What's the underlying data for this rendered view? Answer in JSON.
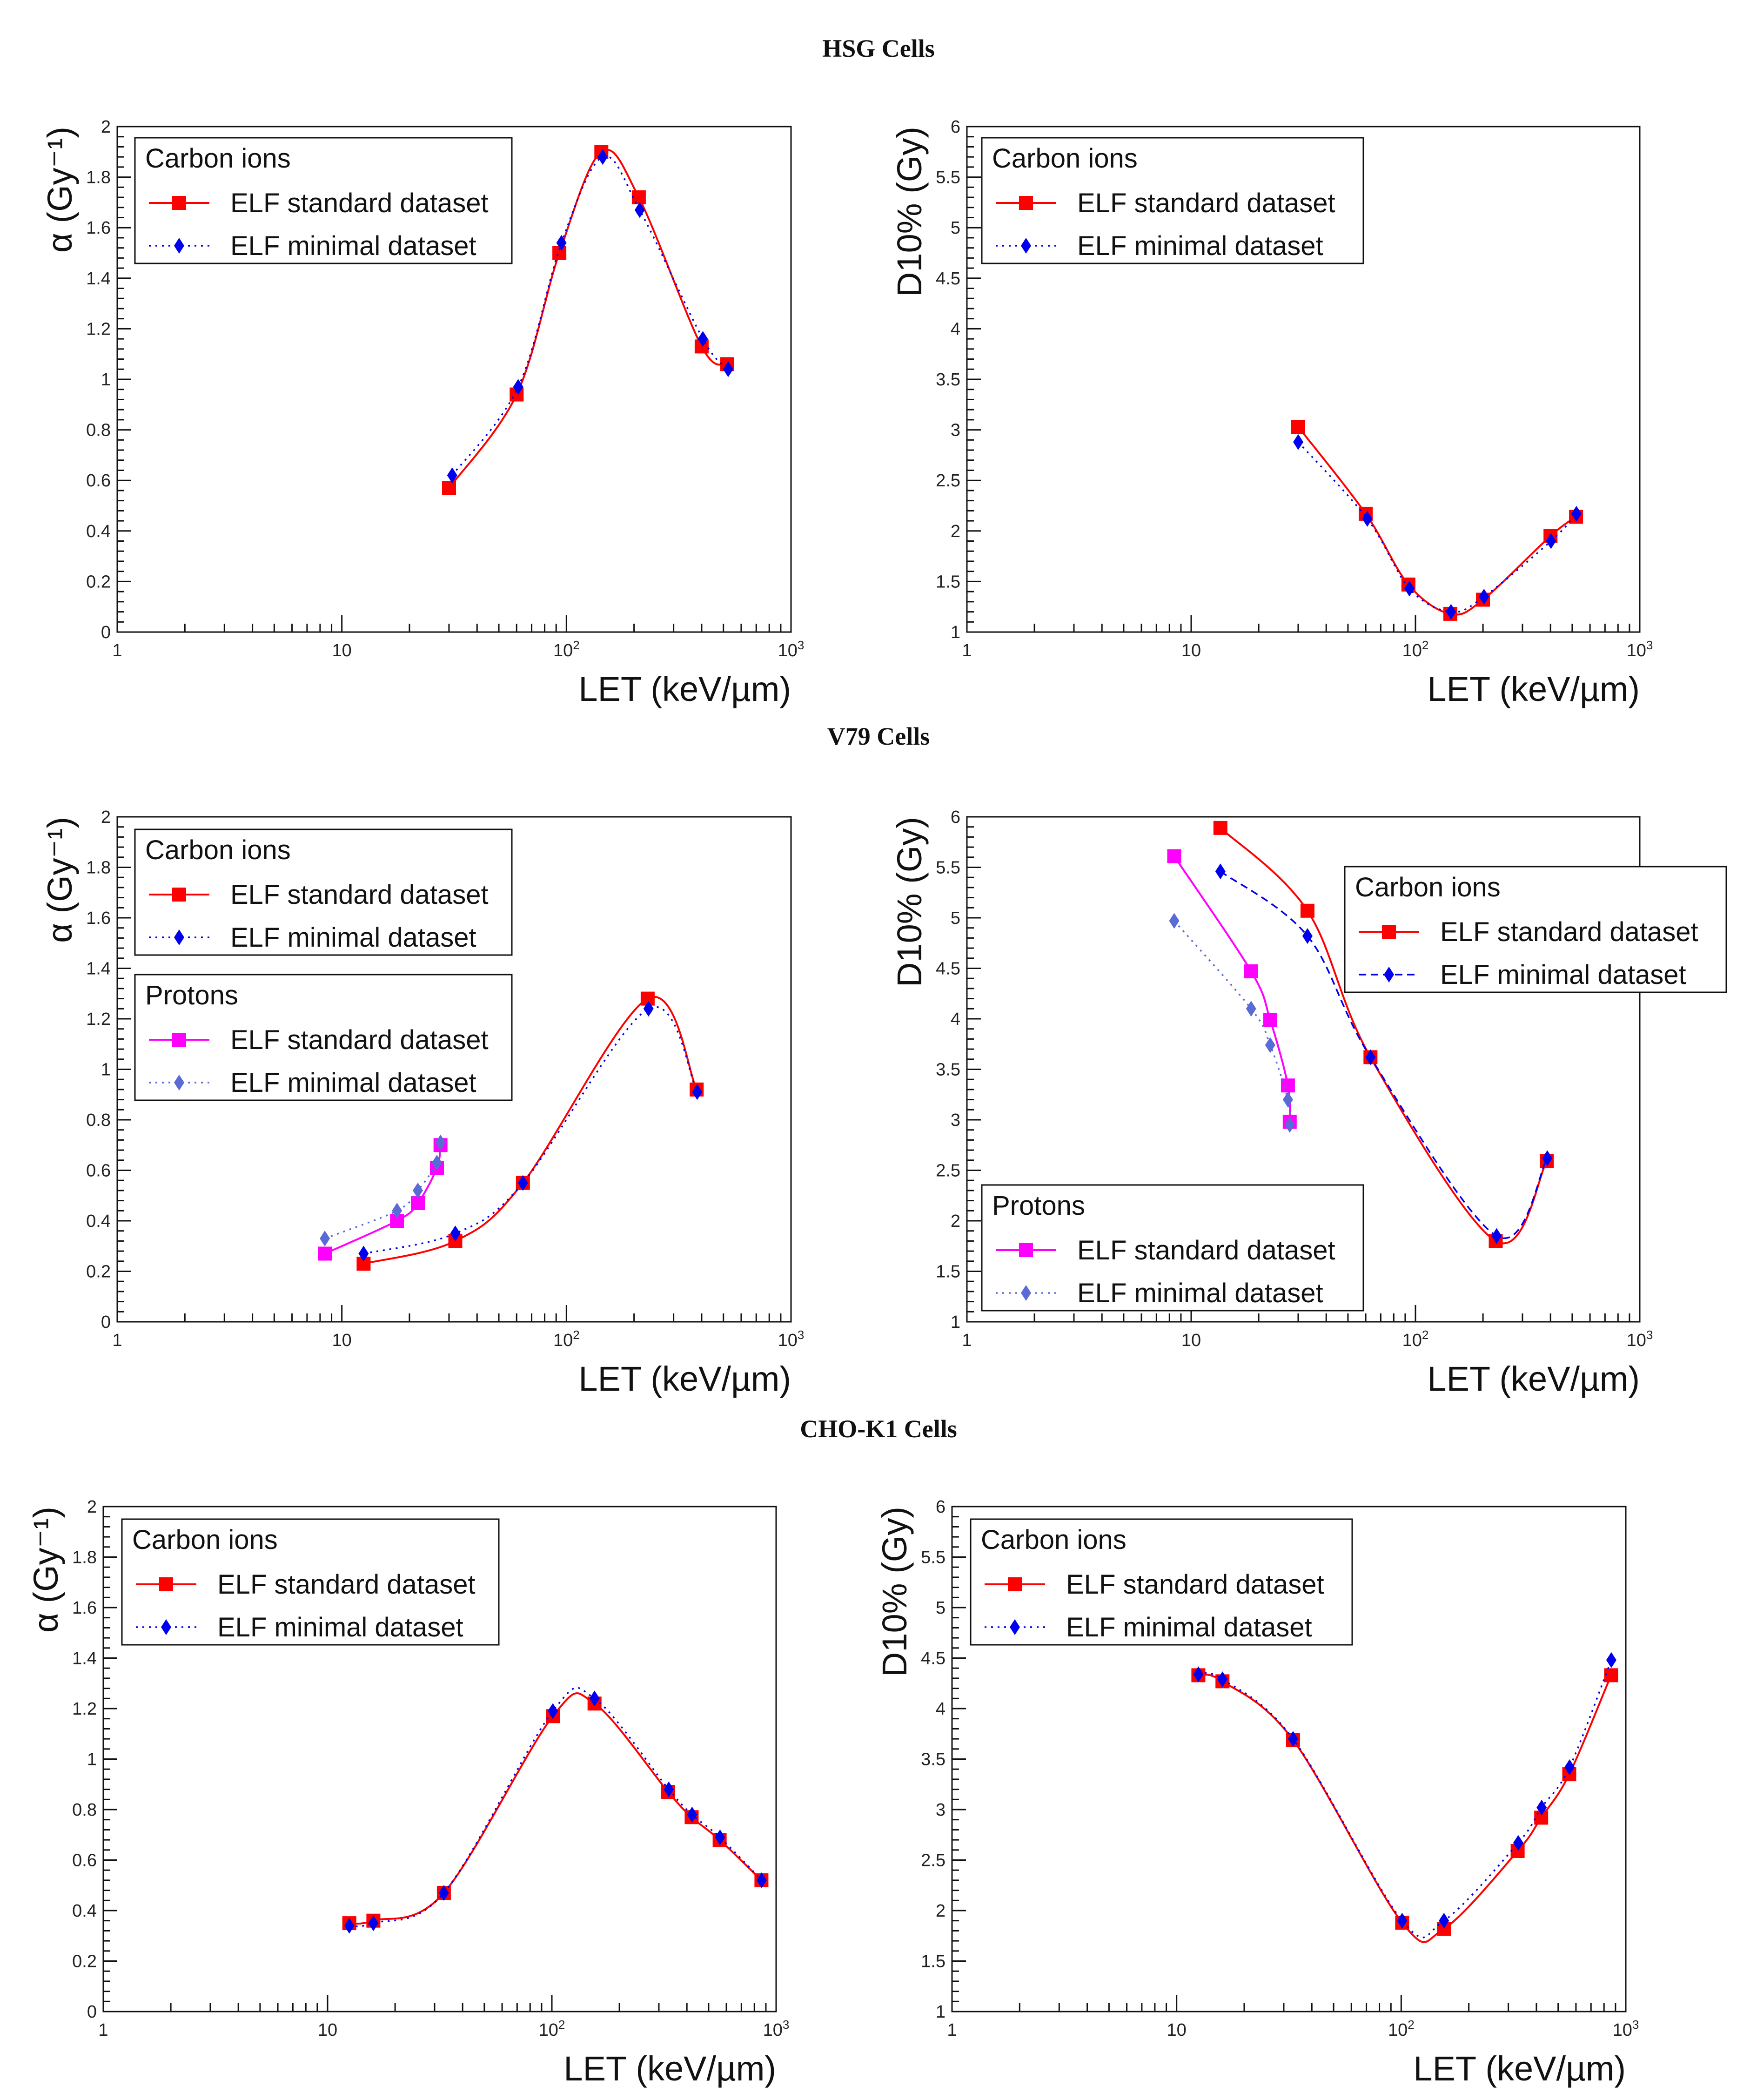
{
  "colors": {
    "carbon_standard": "#ff0000",
    "carbon_minimal": "#0000ee",
    "proton_standard": "#ff00ff",
    "proton_minimal": "#5b6bd6"
  },
  "markers": {
    "standard": "square",
    "minimal": "diamond"
  },
  "sections": [
    {
      "title": "HSG Cells"
    },
    {
      "title": "V79 Cells"
    },
    {
      "title": "CHO-K1 Cells"
    }
  ],
  "chart_data": [
    {
      "id": "hsg-alpha",
      "type": "line",
      "section": "HSG Cells",
      "xscale": "log",
      "xlim": [
        1,
        1000
      ],
      "ylim": [
        0,
        2
      ],
      "yticks": [
        0,
        0.2,
        0.4,
        0.6,
        0.8,
        1,
        1.2,
        1.4,
        1.6,
        1.8,
        2
      ],
      "xlabel": "LET (keV/µm)",
      "ylabel": "α (Gy⁻¹)",
      "legends": [
        {
          "title": "Carbon ions",
          "entries": [
            {
              "label": "ELF standard dataset",
              "series": 0
            },
            {
              "label": "ELF minimal dataset",
              "series": 1
            }
          ]
        }
      ],
      "series": [
        {
          "name": "Carbon ions – ELF standard dataset",
          "color": "carbon_standard",
          "marker": "square",
          "line": "solid",
          "x": [
            30,
            60,
            93,
            143,
            210,
            400,
            520
          ],
          "y": [
            0.57,
            0.94,
            1.5,
            1.9,
            1.72,
            1.13,
            1.06
          ]
        },
        {
          "name": "Carbon ions – ELF minimal dataset",
          "color": "carbon_minimal",
          "marker": "diamond",
          "line": "dotted",
          "x": [
            31,
            61,
            95,
            145,
            212,
            405,
            525
          ],
          "y": [
            0.62,
            0.97,
            1.54,
            1.88,
            1.67,
            1.16,
            1.04
          ]
        }
      ]
    },
    {
      "id": "hsg-d10",
      "type": "line",
      "section": "HSG Cells",
      "xscale": "log",
      "xlim": [
        1,
        1000
      ],
      "ylim": [
        1,
        6
      ],
      "yticks": [
        1,
        1.5,
        2,
        2.5,
        3,
        3.5,
        4,
        4.5,
        5,
        5.5,
        6
      ],
      "xlabel": "LET (keV/µm)",
      "ylabel": "D10% (Gy)",
      "legends": [
        {
          "title": "Carbon ions",
          "entries": [
            {
              "label": "ELF standard dataset",
              "series": 0
            },
            {
              "label": "ELF minimal dataset",
              "series": 1
            }
          ]
        }
      ],
      "series": [
        {
          "name": "Carbon ions – ELF standard dataset",
          "color": "carbon_standard",
          "marker": "square",
          "line": "solid",
          "x": [
            30,
            60,
            93,
            143,
            200,
            400,
            520
          ],
          "y": [
            3.03,
            2.17,
            1.47,
            1.18,
            1.32,
            1.95,
            2.14
          ]
        },
        {
          "name": "Carbon ions – ELF minimal dataset",
          "color": "carbon_minimal",
          "marker": "diamond",
          "line": "dotted",
          "x": [
            30,
            61,
            94,
            144,
            202,
            402,
            522
          ],
          "y": [
            2.88,
            2.12,
            1.43,
            1.2,
            1.35,
            1.9,
            2.17
          ]
        }
      ]
    },
    {
      "id": "v79-alpha",
      "type": "line",
      "section": "V79 Cells",
      "xscale": "log",
      "xlim": [
        1,
        1000
      ],
      "ylim": [
        0,
        2
      ],
      "yticks": [
        0,
        0.2,
        0.4,
        0.6,
        0.8,
        1,
        1.2,
        1.4,
        1.6,
        1.8,
        2
      ],
      "xlabel": "LET (keV/µm)",
      "ylabel": "α (Gy⁻¹)",
      "legends": [
        {
          "title": "Carbon ions",
          "entries": [
            {
              "label": "ELF standard dataset",
              "series": 0
            },
            {
              "label": "ELF minimal dataset",
              "series": 1
            }
          ]
        },
        {
          "title": "Protons",
          "entries": [
            {
              "label": "ELF standard dataset",
              "series": 2
            },
            {
              "label": "ELF minimal dataset",
              "series": 3
            }
          ]
        }
      ],
      "series": [
        {
          "name": "Carbon ions – ELF standard dataset",
          "color": "carbon_standard",
          "marker": "square",
          "line": "solid",
          "x": [
            12.5,
            32,
            64,
            230,
            380
          ],
          "y": [
            0.23,
            0.32,
            0.55,
            1.28,
            0.92
          ]
        },
        {
          "name": "Carbon ions – ELF minimal dataset",
          "color": "carbon_minimal",
          "marker": "diamond",
          "line": "dotted",
          "x": [
            12.5,
            32,
            64,
            232,
            382
          ],
          "y": [
            0.27,
            0.35,
            0.55,
            1.24,
            0.91
          ]
        },
        {
          "name": "Protons – ELF standard dataset",
          "color": "proton_standard",
          "marker": "square",
          "line": "solid",
          "x": [
            8.4,
            17.6,
            21.8,
            26.5,
            27.5
          ],
          "y": [
            0.27,
            0.4,
            0.47,
            0.61,
            0.7
          ]
        },
        {
          "name": "Protons – ELF minimal dataset",
          "color": "proton_minimal",
          "marker": "diamond",
          "line": "dotted",
          "x": [
            8.4,
            17.6,
            21.8,
            26.5,
            27.5
          ],
          "y": [
            0.33,
            0.44,
            0.52,
            0.63,
            0.71
          ]
        }
      ]
    },
    {
      "id": "v79-d10",
      "type": "line",
      "section": "V79 Cells",
      "xscale": "log",
      "xlim": [
        1,
        1000
      ],
      "ylim": [
        1,
        6
      ],
      "yticks": [
        1,
        1.5,
        2,
        2.5,
        3,
        3.5,
        4,
        4.5,
        5,
        5.5,
        6
      ],
      "xlabel": "LET (keV/µm)",
      "ylabel": "D10% (Gy)",
      "legends": [
        {
          "title": "Carbon ions",
          "entries": [
            {
              "label": "ELF standard dataset",
              "series": 0
            },
            {
              "label": "ELF minimal dataset",
              "series": 1
            }
          ]
        },
        {
          "title": "Protons",
          "entries": [
            {
              "label": "ELF standard dataset",
              "series": 2
            },
            {
              "label": "ELF minimal dataset",
              "series": 3
            }
          ]
        }
      ],
      "series": [
        {
          "name": "Carbon ions – ELF standard dataset",
          "color": "carbon_standard",
          "marker": "square",
          "line": "solid",
          "x": [
            13.5,
            33,
            63,
            228,
            385
          ],
          "y": [
            5.89,
            5.07,
            3.62,
            1.8,
            2.59
          ]
        },
        {
          "name": "Carbon ions – ELF minimal dataset",
          "color": "carbon_minimal",
          "marker": "diamond",
          "line": "dashed",
          "x": [
            13.5,
            33,
            63,
            230,
            387
          ],
          "y": [
            5.46,
            4.82,
            3.62,
            1.85,
            2.62
          ]
        },
        {
          "name": "Protons – ELF standard dataset",
          "color": "proton_standard",
          "marker": "square",
          "line": "solid",
          "x": [
            8.4,
            18.5,
            22.5,
            27,
            27.5
          ],
          "y": [
            5.61,
            4.47,
            3.99,
            3.34,
            2.98
          ]
        },
        {
          "name": "Protons – ELF minimal dataset",
          "color": "proton_minimal",
          "marker": "diamond",
          "line": "dotted",
          "x": [
            8.4,
            18.5,
            22.5,
            27,
            27.5
          ],
          "y": [
            4.97,
            4.1,
            3.74,
            3.2,
            2.95
          ]
        }
      ]
    },
    {
      "id": "cho-alpha",
      "type": "line",
      "section": "CHO-K1 Cells",
      "xscale": "log",
      "xlim": [
        1,
        1000
      ],
      "ylim": [
        0,
        2
      ],
      "yticks": [
        0,
        0.2,
        0.4,
        0.6,
        0.8,
        1,
        1.2,
        1.4,
        1.6,
        1.8,
        2
      ],
      "xlabel": "LET (keV/µm)",
      "ylabel": "α (Gy⁻¹)",
      "legends": [
        {
          "title": "Carbon ions",
          "entries": [
            {
              "label": "ELF standard dataset",
              "series": 0
            },
            {
              "label": "ELF minimal dataset",
              "series": 1
            }
          ]
        }
      ],
      "series": [
        {
          "name": "Carbon ions – ELF standard dataset",
          "color": "carbon_standard",
          "marker": "square",
          "line": "solid",
          "x": [
            12.5,
            16,
            33,
            101,
            155,
            330,
            420,
            560,
            860
          ],
          "y": [
            0.35,
            0.36,
            0.47,
            1.17,
            1.22,
            0.87,
            0.77,
            0.68,
            0.52
          ]
        },
        {
          "name": "Carbon ions – ELF minimal dataset",
          "color": "carbon_minimal",
          "marker": "diamond",
          "line": "dotted",
          "x": [
            12.5,
            16,
            33,
            101,
            155,
            332,
            422,
            562,
            862
          ],
          "y": [
            0.34,
            0.35,
            0.47,
            1.19,
            1.24,
            0.88,
            0.78,
            0.69,
            0.52
          ]
        }
      ]
    },
    {
      "id": "cho-d10",
      "type": "line",
      "section": "CHO-K1 Cells",
      "xscale": "log",
      "xlim": [
        1,
        1000
      ],
      "ylim": [
        1,
        6
      ],
      "yticks": [
        1,
        1.5,
        2,
        2.5,
        3,
        3.5,
        4,
        4.5,
        5,
        5.5,
        6
      ],
      "xlabel": "LET (keV/µm)",
      "ylabel": "D10% (Gy)",
      "legends": [
        {
          "title": "Carbon ions",
          "entries": [
            {
              "label": "ELF standard dataset",
              "series": 0
            },
            {
              "label": "ELF minimal dataset",
              "series": 1
            }
          ]
        }
      ],
      "series": [
        {
          "name": "Carbon ions – ELF standard dataset",
          "color": "carbon_standard",
          "marker": "square",
          "line": "solid",
          "x": [
            12.5,
            16,
            33,
            101,
            155,
            330,
            420,
            560,
            860
          ],
          "y": [
            4.33,
            4.27,
            3.69,
            1.88,
            1.82,
            2.59,
            2.92,
            3.35,
            4.33
          ]
        },
        {
          "name": "Carbon ions – ELF minimal dataset",
          "color": "carbon_minimal",
          "marker": "diamond",
          "line": "dotted",
          "x": [
            12.5,
            16,
            33,
            101,
            155,
            332,
            422,
            562,
            862
          ],
          "y": [
            4.34,
            4.29,
            3.7,
            1.9,
            1.9,
            2.67,
            3.02,
            3.42,
            4.48
          ]
        }
      ]
    }
  ]
}
